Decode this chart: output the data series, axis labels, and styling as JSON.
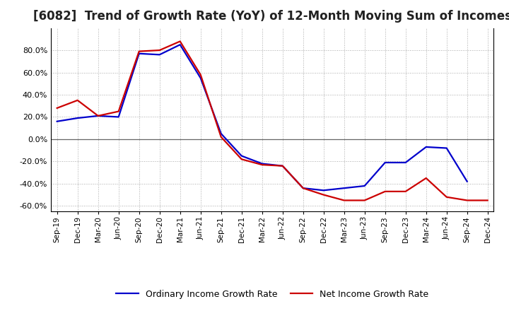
{
  "title": "[6082]  Trend of Growth Rate (YoY) of 12-Month Moving Sum of Incomes",
  "title_fontsize": 12,
  "xlabels": [
    "Sep-19",
    "Dec-19",
    "Mar-20",
    "Jun-20",
    "Sep-20",
    "Dec-20",
    "Mar-21",
    "Jun-21",
    "Sep-21",
    "Dec-21",
    "Mar-22",
    "Jun-22",
    "Sep-22",
    "Dec-22",
    "Mar-23",
    "Jun-23",
    "Sep-23",
    "Dec-23",
    "Mar-24",
    "Jun-24",
    "Sep-24",
    "Dec-24"
  ],
  "ordinary_income": [
    16,
    19,
    21,
    20,
    77,
    76,
    85,
    55,
    5,
    -15,
    -22,
    -24,
    -44,
    -46,
    -44,
    -42,
    -21,
    -21,
    -7,
    -8,
    -38,
    null
  ],
  "net_income": [
    28,
    35,
    21,
    25,
    79,
    80,
    88,
    58,
    2,
    -18,
    -23,
    -24,
    -44,
    -50,
    -55,
    -55,
    -47,
    -47,
    -35,
    -52,
    -55,
    -55
  ],
  "ylim": [
    -65,
    100
  ],
  "yticks": [
    -60,
    -40,
    -20,
    0,
    20,
    40,
    60,
    80
  ],
  "ordinary_color": "#0000CC",
  "net_color": "#CC0000",
  "bg_color": "#FFFFFF",
  "plot_bg_color": "#FFFFFF",
  "grid_color": "#AAAAAA",
  "zero_line_color": "#666666",
  "legend_ordinary": "Ordinary Income Growth Rate",
  "legend_net": "Net Income Growth Rate",
  "line_width": 1.6
}
